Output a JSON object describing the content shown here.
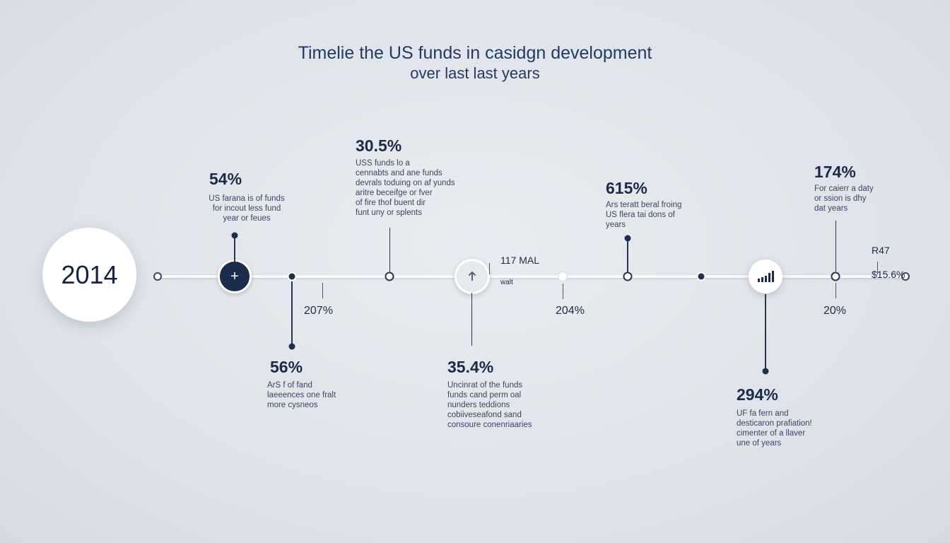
{
  "title": {
    "line1": "Timelie the US funds in casidgn development",
    "line2": "over last last years"
  },
  "year": "2014",
  "events": {
    "e1": {
      "percent": "54%",
      "text": "US farana is of funds\nfor incout less fund\nyear or feues"
    },
    "e2": {
      "percent": "30.5%",
      "text": "USS funds lo a\ncennabts and ane funds\ndevrals toduing on af yunds\naritre beceifge or fver\nof fire thof buent dir\nfunt uny or splents"
    },
    "e3": {
      "percent": "615%",
      "text": "Ars teratt beral froing\nUS flera tai dons of\nyears"
    },
    "e4": {
      "percent": "174%",
      "text": "For caierr a daty\nor ssion is dhy\ndat years"
    },
    "e5": {
      "percent": "207%"
    },
    "e6": {
      "percent": "56%",
      "text": "ArS f of fand\nlaeeences one fralt\nmore cysneos"
    },
    "e7": {
      "percent": "35.4%",
      "text": "Uncinrat of the funds\nfunds cand perm oal\nnunders teddions\ncobiiveseafond sand\nconsoure conenriaaries"
    },
    "e8": {
      "percent": "204%"
    },
    "e9": {
      "percent": "294%",
      "text": "UF fa fern and\ndesticaron prafiation!\ncimenter of a llaver\nune of years"
    },
    "e10": {
      "percent": "20%"
    },
    "m1": {
      "line1": "117 MAL",
      "line2": "walt"
    },
    "m2": {
      "line1": "R47",
      "line2": "$15.6%"
    }
  },
  "icons": [
    "plus-icon",
    "arrow-up-icon",
    "bar-chart-icon"
  ],
  "colors": {
    "navy": "#1b2b4b",
    "line": "#f7f9fb",
    "background": "#dde2e8"
  }
}
